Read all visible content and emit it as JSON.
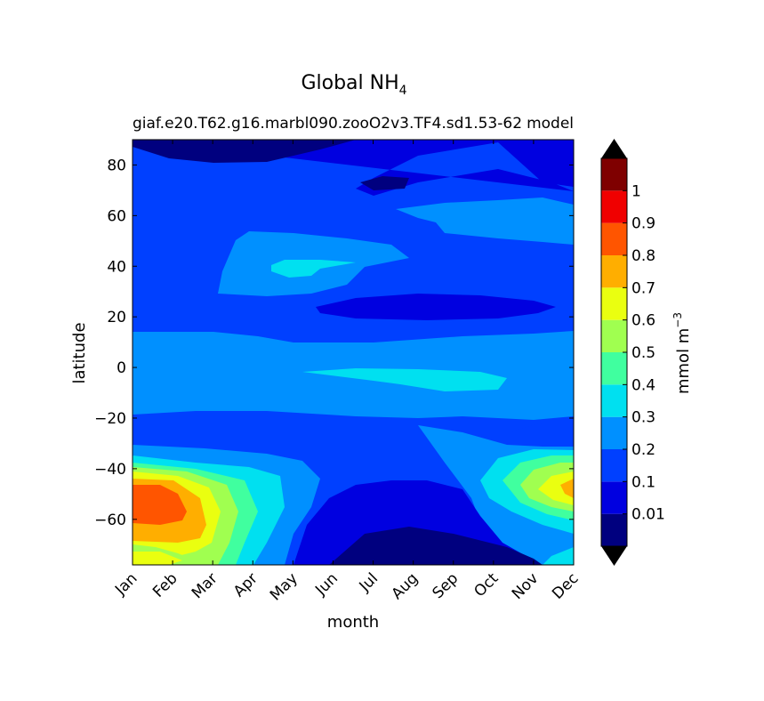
{
  "chart_data": {
    "type": "heatmap",
    "title": "Global NH",
    "title_subscript": "4",
    "subtitle_left": "giaf.e20.T62.g16.marbl090.zooO2v3.TF4.sd1.53-62",
    "subtitle_right": "model",
    "xlabel": "month",
    "ylabel": "latitude",
    "x_categories": [
      "Jan",
      "Feb",
      "Mar",
      "Apr",
      "May",
      "Jun",
      "Jul",
      "Aug",
      "Sep",
      "Oct",
      "Nov",
      "Dec"
    ],
    "yticks": [
      80,
      60,
      40,
      20,
      0,
      -20,
      -40,
      -60
    ],
    "ytick_labels": [
      "80",
      "60",
      "40",
      "20",
      "0",
      "−20",
      "−40",
      "−60"
    ],
    "ylim": [
      -78,
      90
    ],
    "colorbar": {
      "label": "mmol m",
      "label_superscript": "−3",
      "levels": [
        0,
        0.01,
        0.1,
        0.2,
        0.3,
        0.4,
        0.5,
        0.6,
        0.7,
        0.8,
        0.9,
        1,
        1.1
      ],
      "tick_labels": [
        "0.01",
        "0.1",
        "0.2",
        "0.3",
        "0.4",
        "0.5",
        "0.6",
        "0.7",
        "0.8",
        "0.9",
        "1"
      ],
      "colors": [
        "#00007f",
        "#0000e0",
        "#0040ff",
        "#0090ff",
        "#00e0f0",
        "#40ff9f",
        "#a0ff50",
        "#eaff10",
        "#ffae00",
        "#ff5500",
        "#f00000",
        "#7f0000"
      ],
      "extend": "both"
    },
    "grid": false
  }
}
